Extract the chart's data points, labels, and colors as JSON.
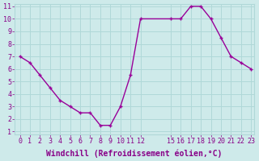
{
  "x": [
    0,
    1,
    2,
    3,
    4,
    5,
    6,
    7,
    8,
    9,
    10,
    11,
    12,
    15,
    16,
    17,
    18,
    19,
    20,
    21,
    22,
    23
  ],
  "y": [
    7,
    6.5,
    5.5,
    4.5,
    3.5,
    3.0,
    2.5,
    2.5,
    1.5,
    1.5,
    3.0,
    5.5,
    10.0,
    10.0,
    10.0,
    11.0,
    11.0,
    10.0,
    8.5,
    7.0,
    6.5,
    6.0
  ],
  "line_color": "#990099",
  "marker": "+",
  "bg_color": "#ceeaea",
  "grid_color": "#b0d8d8",
  "xlabel": "Windchill (Refroidissement éolien,°C)",
  "font_color": "#880088",
  "ylim": [
    1,
    11
  ],
  "xlim": [
    -0.5,
    23.3
  ],
  "yticks": [
    1,
    2,
    3,
    4,
    5,
    6,
    7,
    8,
    9,
    10,
    11
  ],
  "xticks": [
    0,
    1,
    2,
    3,
    4,
    5,
    6,
    7,
    8,
    9,
    10,
    11,
    12,
    15,
    16,
    17,
    18,
    19,
    20,
    21,
    22,
    23
  ],
  "xtick_labels": [
    "0",
    "1",
    "2",
    "3",
    "4",
    "5",
    "6",
    "7",
    "8",
    "9",
    "10",
    "11",
    "12",
    "15",
    "16",
    "17",
    "18",
    "19",
    "20",
    "21",
    "22",
    "23"
  ],
  "tick_fontsize": 6,
  "label_fontsize": 7,
  "line_width": 1.0,
  "marker_size": 3.5,
  "marker_edge_width": 1.0
}
